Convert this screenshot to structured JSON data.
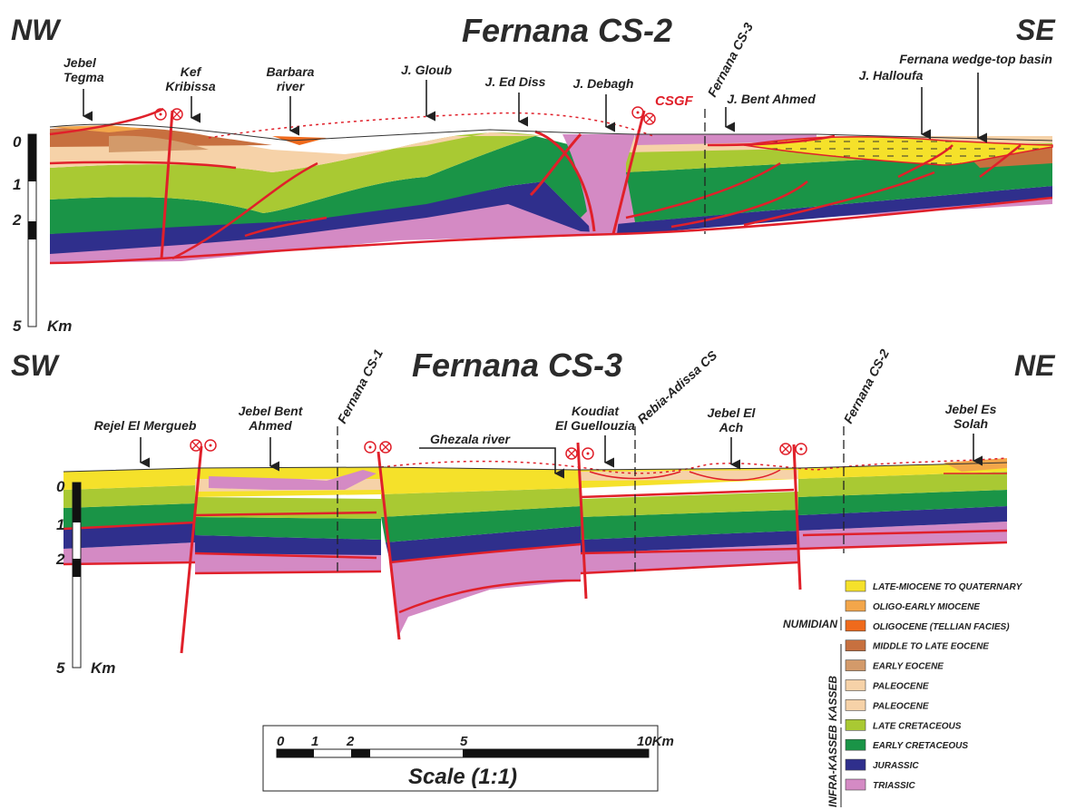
{
  "section1": {
    "title": "Fernana CS-2",
    "left_dir": "NW",
    "right_dir": "SE",
    "labels": {
      "jebel_tegma": [
        "Jebel",
        "Tegma"
      ],
      "kef_kribissa": [
        "Kef",
        "Kribissa"
      ],
      "barbara_river": [
        "Barbara",
        "river"
      ],
      "j_gloub": "J. Gloub",
      "j_ed_diss": "J. Ed Diss",
      "j_debagh": "J. Debagh",
      "csgf": "CSGF",
      "fernana_cs3": "Fernana CS-3",
      "j_bent_ahmed": "J. Bent Ahmed",
      "wedge_top": "Fernana wedge-top basin",
      "j_halloufa": "J. Halloufa"
    },
    "depth_labels": [
      "0",
      "1",
      "2",
      "5"
    ],
    "depth_unit": "Km"
  },
  "section2": {
    "title": "Fernana CS-3",
    "left_dir": "SW",
    "right_dir": "NE",
    "labels": {
      "rejel": "Rejel El Mergueb",
      "jebel_bent_ahmed": [
        "Jebel Bent",
        "Ahmed"
      ],
      "fernana_cs1": "Fernana CS-1",
      "ghezala": "Ghezala river",
      "koudiat": [
        "Koudiat",
        "El Guellouzia"
      ],
      "rebia": "Rebia-Adissa CS",
      "jebel_el_ach": [
        "Jebel El",
        "Ach"
      ],
      "fernana_cs2": "Fernana CS-2",
      "jebel_es_solah": [
        "Jebel Es",
        "Solah"
      ]
    },
    "depth_labels": [
      "0",
      "1",
      "2",
      "5"
    ],
    "depth_unit": "Km"
  },
  "legend": {
    "groups": {
      "numidian": "NUMIDIAN",
      "kasseb": "KASSEB",
      "infra_kasseb": "INFRA-KASSEB"
    },
    "items": [
      {
        "label": "LATE-MIOCENE TO QUATERNARY",
        "color": "#f5e12a"
      },
      {
        "label": "OLIGO-EARLY MIOCENE",
        "color": "#f3a64a"
      },
      {
        "label": "OLIGOCENE (TELLIAN FACIES)",
        "color": "#ef6a1c"
      },
      {
        "label": "MIDDLE TO LATE EOCENE",
        "color": "#c7703f"
      },
      {
        "label": "EARLY EOCENE",
        "color": "#d39a6a"
      },
      {
        "label": "PALEOCENE",
        "color": "#f6d2a8"
      },
      {
        "label": "PALEOCENE",
        "color": "#f6d2a8"
      },
      {
        "label": "LATE CRETACEOUS",
        "color": "#a9c933"
      },
      {
        "label": "EARLY CRETACEOUS",
        "color": "#1a9447"
      },
      {
        "label": "JURASSIC",
        "color": "#2f2f8c"
      },
      {
        "label": "TRIASSIC",
        "color": "#d48ac4"
      }
    ]
  },
  "scale": {
    "ticks": [
      "0",
      "1",
      "2",
      "5",
      "10Km"
    ],
    "caption": "Scale (1:1)"
  }
}
